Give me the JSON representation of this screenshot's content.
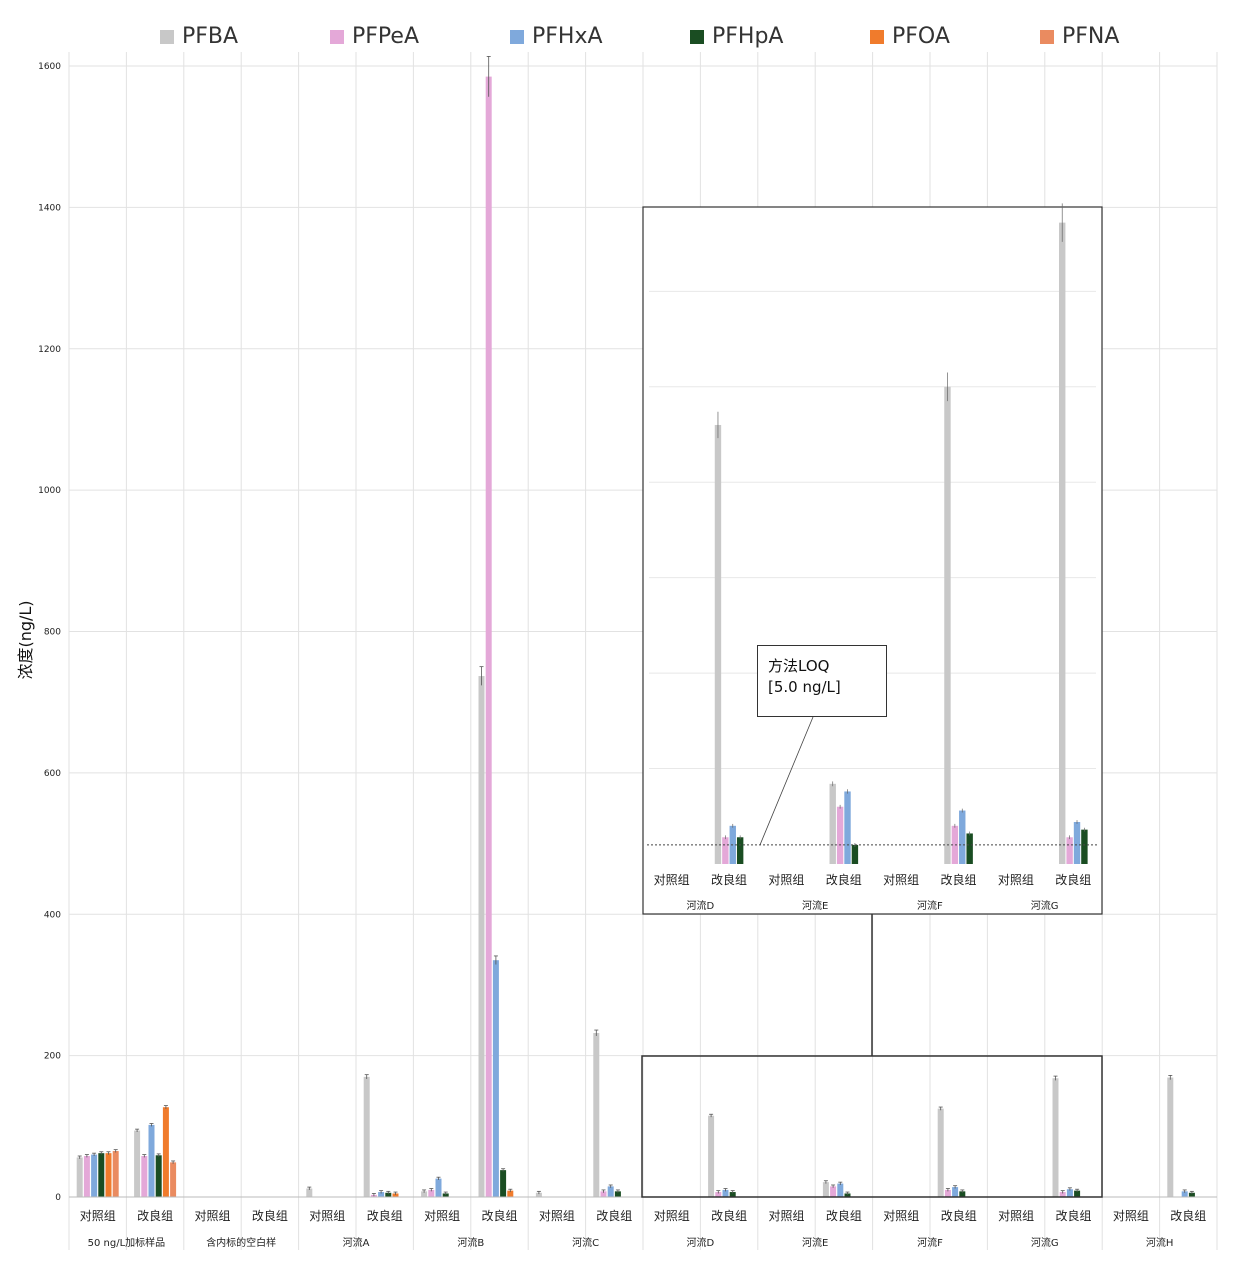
{
  "legend": {
    "series": [
      {
        "name": "PFBA",
        "color": "#c8c8c8"
      },
      {
        "name": "PFPeA",
        "color": "#e4a8d8"
      },
      {
        "name": "PFHxA",
        "color": "#7fa9dc"
      },
      {
        "name": "PFHpA",
        "color": "#1a4d22"
      },
      {
        "name": "PFOA",
        "color": "#f07b2c"
      },
      {
        "name": "PFNA",
        "color": "#ea8b60"
      }
    ]
  },
  "inset_callout": {
    "line1": "方法LOQ",
    "line2": "[5.0 ng/L]"
  },
  "chart_data": {
    "type": "bar",
    "ylabel": "浓度(ng/L)",
    "ylim": [
      0,
      1600
    ],
    "yticks": [
      0,
      200,
      400,
      600,
      800,
      1000,
      1200,
      1400,
      1600
    ],
    "groups": [
      "50 ng/L加标样品",
      "含内标的空白样",
      "河流A",
      "河流B",
      "河流C",
      "河流D",
      "河流E",
      "河流F",
      "河流G",
      "河流H"
    ],
    "subgroups": [
      "对照组",
      "改良组"
    ],
    "series": [
      {
        "name": "PFBA",
        "values": [
          [
            56,
            94
          ],
          [
            0,
            0
          ],
          [
            12,
            170
          ],
          [
            8,
            737
          ],
          [
            6,
            232
          ],
          [
            0,
            115
          ],
          [
            0,
            21
          ],
          [
            0,
            125
          ],
          [
            0,
            168
          ],
          [
            0,
            169
          ]
        ]
      },
      {
        "name": "PFPeA",
        "values": [
          [
            58,
            58
          ],
          [
            0,
            0
          ],
          [
            0,
            3
          ],
          [
            10,
            1585
          ],
          [
            0,
            8
          ],
          [
            0,
            7
          ],
          [
            0,
            15
          ],
          [
            0,
            10
          ],
          [
            0,
            7
          ],
          [
            0,
            0
          ]
        ]
      },
      {
        "name": "PFHxA",
        "values": [
          [
            60,
            102
          ],
          [
            0,
            0
          ],
          [
            0,
            7
          ],
          [
            26,
            335
          ],
          [
            0,
            15
          ],
          [
            0,
            10
          ],
          [
            0,
            19
          ],
          [
            0,
            14
          ],
          [
            0,
            11
          ],
          [
            0,
            8
          ]
        ]
      },
      {
        "name": "PFHpA",
        "values": [
          [
            62,
            59
          ],
          [
            0,
            0
          ],
          [
            0,
            6
          ],
          [
            5,
            38
          ],
          [
            0,
            8
          ],
          [
            0,
            7
          ],
          [
            0,
            5
          ],
          [
            0,
            8
          ],
          [
            0,
            9
          ],
          [
            0,
            6
          ]
        ]
      },
      {
        "name": "PFOA",
        "values": [
          [
            62,
            127
          ],
          [
            0,
            0
          ],
          [
            0,
            5
          ],
          [
            0,
            9
          ],
          [
            0,
            0
          ],
          [
            0,
            0
          ],
          [
            0,
            0
          ],
          [
            0,
            0
          ],
          [
            0,
            0
          ],
          [
            0,
            0
          ]
        ]
      },
      {
        "name": "PFNA",
        "values": [
          [
            65,
            49
          ],
          [
            0,
            0
          ],
          [
            0,
            0
          ],
          [
            0,
            0
          ],
          [
            0,
            0
          ],
          [
            0,
            0
          ],
          [
            0,
            0
          ],
          [
            0,
            0
          ],
          [
            0,
            0
          ],
          [
            0,
            0
          ]
        ]
      }
    ],
    "inset": {
      "groups": [
        "河流D",
        "河流E",
        "河流F",
        "河流G"
      ],
      "subgroups": [
        "对照组",
        "改良组"
      ],
      "series": [
        {
          "name": "PFBA",
          "values": [
            [
              0,
              115
            ],
            [
              0,
              21
            ],
            [
              0,
              125
            ],
            [
              0,
              168
            ]
          ]
        },
        {
          "name": "PFPeA",
          "values": [
            [
              0,
              7
            ],
            [
              0,
              15
            ],
            [
              0,
              10
            ],
            [
              0,
              7
            ]
          ]
        },
        {
          "name": "PFHxA",
          "values": [
            [
              0,
              10
            ],
            [
              0,
              19
            ],
            [
              0,
              14
            ],
            [
              0,
              11
            ]
          ]
        },
        {
          "name": "PFHpA",
          "values": [
            [
              0,
              7
            ],
            [
              0,
              5
            ],
            [
              0,
              8
            ],
            [
              0,
              9
            ]
          ]
        }
      ],
      "loq": 5.0
    }
  }
}
